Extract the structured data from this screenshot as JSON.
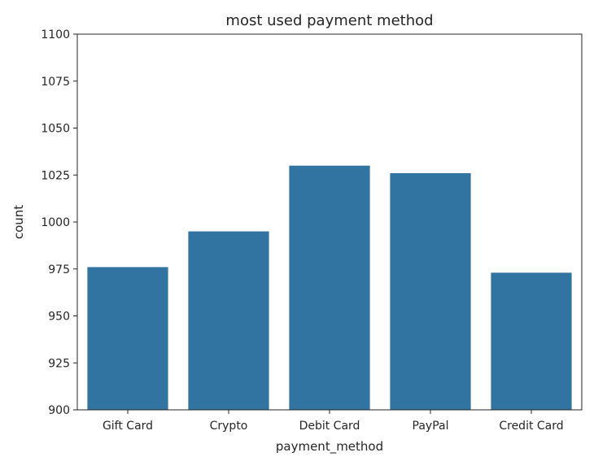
{
  "chart_data": {
    "type": "bar",
    "title": "most used payment method",
    "xlabel": "payment_method",
    "ylabel": "count",
    "categories": [
      "Gift Card",
      "Crypto",
      "Debit Card",
      "PayPal",
      "Credit Card"
    ],
    "values": [
      976,
      995,
      1030,
      1026,
      973
    ],
    "ylim": [
      900,
      1100
    ],
    "yticks": [
      900,
      925,
      950,
      975,
      1000,
      1025,
      1050,
      1075,
      1100
    ],
    "grid": false,
    "bar_color": "#3274a1"
  }
}
